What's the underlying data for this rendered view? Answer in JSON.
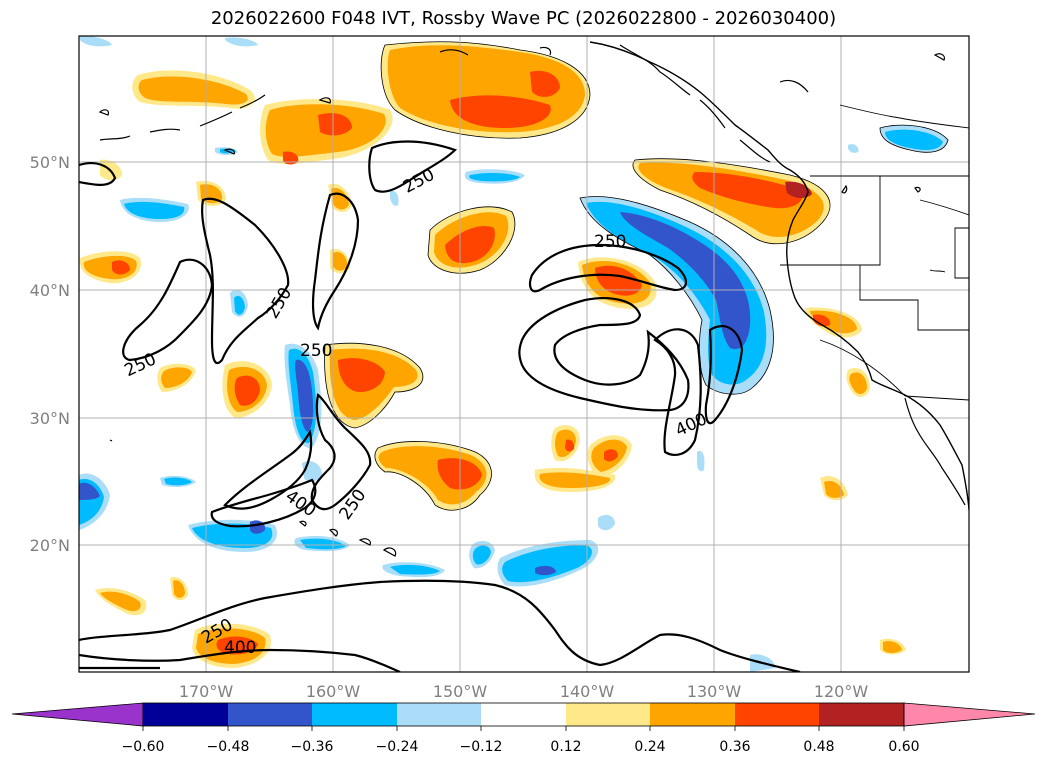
{
  "title": "2026022600 F048 IVT, Rossby Wave PC (2026022800 - 2026030400)",
  "map": {
    "lon_labels": [
      "170°W",
      "160°W",
      "150°W",
      "140°W",
      "130°W",
      "120°W"
    ],
    "lat_labels": [
      "50°N",
      "40°N",
      "30°N",
      "20°N"
    ],
    "contour_labels": [
      "250",
      "250",
      "250",
      "250",
      "250",
      "250",
      "250",
      "400",
      "400",
      "400"
    ]
  },
  "colorbar": {
    "ticks": [
      "−0.60",
      "−0.48",
      "−0.36",
      "−0.24",
      "−0.12",
      "0.12",
      "0.24",
      "0.36",
      "0.48",
      "0.60"
    ],
    "colors": [
      "#9933cc",
      "#000099",
      "#3355cc",
      "#00bbff",
      "#aaddf8",
      "#ffffff",
      "#ffe88a",
      "#ffa500",
      "#ff4400",
      "#b22222",
      "#ff88aa"
    ]
  }
}
